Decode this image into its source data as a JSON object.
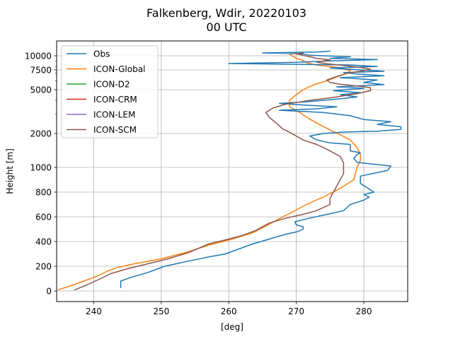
{
  "chart_data": {
    "type": "line",
    "title_line1": "Falkenberg, Wdir, 20220103",
    "title_line2": "00 UTC",
    "xlabel": "[deg]",
    "ylabel": "Height [m]",
    "xlim": [
      234.5,
      286.5
    ],
    "x_ticks": [
      240,
      250,
      260,
      270,
      280
    ],
    "y_ticks": [
      {
        "value": 0,
        "label": "0"
      },
      {
        "value": 200,
        "label": "200"
      },
      {
        "value": 400,
        "label": "400"
      },
      {
        "value": 600,
        "label": "600"
      },
      {
        "value": 800,
        "label": "800"
      },
      {
        "value": 1000,
        "label": "1000"
      },
      {
        "value": 2000,
        "label": "2000"
      },
      {
        "value": 5000,
        "label": "5000"
      },
      {
        "value": 7500,
        "label": "7500"
      },
      {
        "value": 10000,
        "label": "10000"
      }
    ],
    "legend_position": "top-left",
    "grid": true,
    "series": [
      {
        "name": "Obs",
        "color": "#1f77b4",
        "points": [
          [
            244.0,
            27
          ],
          [
            244.0,
            80
          ],
          [
            245.5,
            110
          ],
          [
            248.0,
            150
          ],
          [
            249.5,
            180
          ],
          [
            250.5,
            200
          ],
          [
            253.0,
            230
          ],
          [
            256.5,
            270
          ],
          [
            259.5,
            300
          ],
          [
            263.5,
            380
          ],
          [
            268.5,
            460
          ],
          [
            270.2,
            480
          ],
          [
            271.0,
            500
          ],
          [
            271.0,
            520
          ],
          [
            270.0,
            535
          ],
          [
            269.8,
            560
          ],
          [
            272.0,
            590
          ],
          [
            275.0,
            625
          ],
          [
            277.0,
            650
          ],
          [
            278.0,
            700
          ],
          [
            280.0,
            735
          ],
          [
            280.8,
            760
          ],
          [
            280.0,
            780
          ],
          [
            281.5,
            800
          ],
          [
            280.5,
            835
          ],
          [
            279.5,
            870
          ],
          [
            279.5,
            930
          ],
          [
            283.5,
            975
          ],
          [
            284.0,
            1030
          ],
          [
            281.0,
            1075
          ],
          [
            279.0,
            1110
          ],
          [
            278.5,
            1200
          ],
          [
            279.0,
            1300
          ],
          [
            279.5,
            1350
          ],
          [
            278.0,
            1400
          ],
          [
            278.0,
            1500
          ],
          [
            278.0,
            1600
          ],
          [
            275.0,
            1650
          ],
          [
            274.0,
            1700
          ],
          [
            273.0,
            1760
          ],
          [
            272.0,
            1900
          ],
          [
            274.0,
            2000
          ],
          [
            277.0,
            2060
          ],
          [
            282.0,
            2100
          ],
          [
            285.5,
            2180
          ],
          [
            285.5,
            2300
          ],
          [
            282.0,
            2420
          ],
          [
            284.0,
            2560
          ],
          [
            280.0,
            2680
          ],
          [
            278.0,
            2900
          ],
          [
            274.0,
            3100
          ],
          [
            267.5,
            3250
          ],
          [
            273.0,
            3350
          ],
          [
            276.0,
            3500
          ],
          [
            272.0,
            3600
          ],
          [
            267.5,
            3750
          ],
          [
            272.0,
            3900
          ],
          [
            276.0,
            4100
          ],
          [
            279.0,
            4300
          ],
          [
            276.5,
            4500
          ],
          [
            279.5,
            4700
          ],
          [
            275.5,
            4900
          ],
          [
            280.0,
            5150
          ],
          [
            276.0,
            5300
          ],
          [
            283.0,
            5550
          ],
          [
            280.0,
            5800
          ],
          [
            282.0,
            6100
          ],
          [
            276.5,
            6400
          ],
          [
            283.0,
            6650
          ],
          [
            279.0,
            6900
          ],
          [
            277.0,
            7100
          ],
          [
            283.0,
            7300
          ],
          [
            278.0,
            7600
          ],
          [
            275.0,
            7800
          ],
          [
            282.0,
            8050
          ],
          [
            278.0,
            8300
          ],
          [
            260.0,
            8550
          ],
          [
            270.0,
            8750
          ],
          [
            275.0,
            9000
          ],
          [
            282.0,
            9250
          ],
          [
            275.0,
            9500
          ],
          [
            278.0,
            9800
          ],
          [
            272.0,
            10100
          ],
          [
            271.0,
            10400
          ],
          [
            265.0,
            10600
          ],
          [
            273.0,
            10800
          ],
          [
            275.0,
            11000
          ]
        ]
      },
      {
        "name": "ICON-Global",
        "color": "#ff7f0e",
        "points": [
          [
            234.7,
            10
          ],
          [
            236.5,
            40
          ],
          [
            238.5,
            80
          ],
          [
            240.5,
            120
          ],
          [
            242.0,
            160
          ],
          [
            243.5,
            190
          ],
          [
            246.0,
            220
          ],
          [
            250.0,
            260
          ],
          [
            253.5,
            310
          ],
          [
            257.0,
            370
          ],
          [
            260.5,
            420
          ],
          [
            263.5,
            470
          ],
          [
            266.0,
            540
          ],
          [
            268.0,
            600
          ],
          [
            269.5,
            640
          ],
          [
            271.5,
            700
          ],
          [
            274.0,
            760
          ],
          [
            276.5,
            830
          ],
          [
            278.5,
            900
          ],
          [
            279.0,
            1000
          ],
          [
            279.5,
            1150
          ],
          [
            279.5,
            1300
          ],
          [
            279.0,
            1500
          ],
          [
            278.0,
            1750
          ],
          [
            276.5,
            1950
          ],
          [
            275.0,
            2150
          ],
          [
            273.5,
            2400
          ],
          [
            272.0,
            2700
          ],
          [
            270.5,
            3100
          ],
          [
            269.0,
            3500
          ],
          [
            269.0,
            4000
          ],
          [
            270.0,
            4500
          ],
          [
            271.0,
            5000
          ],
          [
            272.5,
            5500
          ],
          [
            274.5,
            6000
          ],
          [
            276.0,
            6500
          ],
          [
            277.5,
            7000
          ],
          [
            278.0,
            7400
          ],
          [
            276.0,
            7900
          ],
          [
            273.0,
            8300
          ],
          [
            271.5,
            8700
          ],
          [
            271.0,
            9100
          ],
          [
            270.0,
            9500
          ],
          [
            269.5,
            9900
          ],
          [
            269.0,
            10300
          ],
          [
            270.0,
            10600
          ]
        ]
      },
      {
        "name": "ICON-D2",
        "color": "#2ca02c",
        "points": []
      },
      {
        "name": "ICON-CRM",
        "color": "#d62728",
        "points": []
      },
      {
        "name": "ICON-LEM",
        "color": "#9467bd",
        "points": []
      },
      {
        "name": "ICON-SCM",
        "color": "#8c564b",
        "points": [
          [
            237.2,
            10
          ],
          [
            239.0,
            50
          ],
          [
            241.0,
            100
          ],
          [
            242.5,
            140
          ],
          [
            245.0,
            180
          ],
          [
            248.0,
            220
          ],
          [
            251.0,
            260
          ],
          [
            254.0,
            310
          ],
          [
            257.0,
            380
          ],
          [
            260.0,
            420
          ],
          [
            262.0,
            450
          ],
          [
            264.0,
            490
          ],
          [
            266.0,
            550
          ],
          [
            268.5,
            590
          ],
          [
            271.0,
            620
          ],
          [
            273.0,
            650
          ],
          [
            275.0,
            700
          ],
          [
            275.0,
            750
          ],
          [
            276.0,
            850
          ],
          [
            277.0,
            950
          ],
          [
            277.0,
            1100
          ],
          [
            276.5,
            1250
          ],
          [
            275.0,
            1400
          ],
          [
            274.0,
            1500
          ],
          [
            273.0,
            1600
          ],
          [
            271.0,
            1750
          ],
          [
            270.0,
            1900
          ],
          [
            269.0,
            2050
          ],
          [
            268.0,
            2200
          ],
          [
            267.0,
            2500
          ],
          [
            266.0,
            2800
          ],
          [
            265.5,
            3100
          ],
          [
            266.5,
            3400
          ],
          [
            268.5,
            3700
          ],
          [
            272.0,
            4000
          ],
          [
            276.0,
            4300
          ],
          [
            279.0,
            4600
          ],
          [
            281.0,
            4900
          ],
          [
            281.0,
            5200
          ],
          [
            279.0,
            5400
          ],
          [
            276.5,
            5600
          ],
          [
            275.0,
            5800
          ],
          [
            274.5,
            6100
          ],
          [
            275.5,
            6400
          ],
          [
            276.5,
            6700
          ],
          [
            277.5,
            7000
          ],
          [
            279.5,
            7300
          ],
          [
            281.0,
            7600
          ],
          [
            279.5,
            7900
          ],
          [
            277.0,
            8200
          ],
          [
            274.5,
            8500
          ],
          [
            273.0,
            8800
          ],
          [
            275.0,
            9200
          ],
          [
            273.0,
            9500
          ],
          [
            272.0,
            9800
          ],
          [
            271.0,
            10100
          ],
          [
            270.0,
            10400
          ],
          [
            271.0,
            10600
          ]
        ]
      }
    ]
  }
}
